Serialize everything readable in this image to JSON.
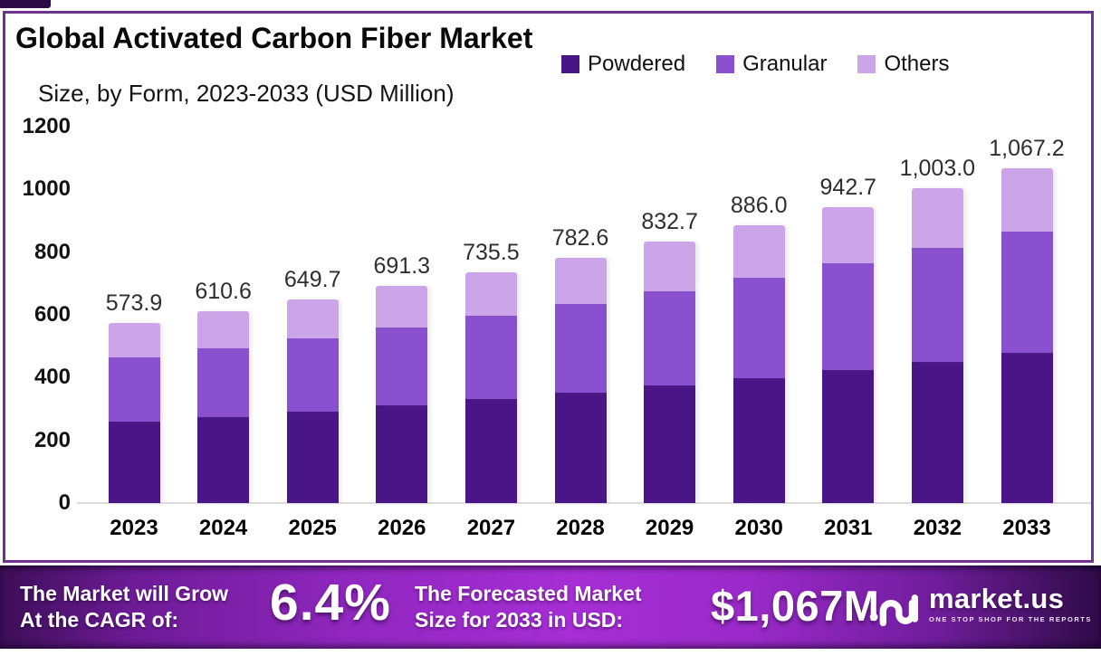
{
  "header": {
    "title": "Global Activated Carbon Fiber Market",
    "subtitle": "Size, by Form, 2023-2033 (USD Million)"
  },
  "chart_data": {
    "type": "bar",
    "stacked": true,
    "title": "Global Activated Carbon Fiber Market Size, by Form, 2023-2033 (USD Million)",
    "categories": [
      "2023",
      "2024",
      "2025",
      "2026",
      "2027",
      "2028",
      "2029",
      "2030",
      "2031",
      "2032",
      "2033"
    ],
    "series": [
      {
        "name": "Powdered",
        "color": "#4a1586",
        "values": [
          258.3,
          274.8,
          292.4,
          311.1,
          331.0,
          352.2,
          374.7,
          398.7,
          424.2,
          451.4,
          480.2
        ]
      },
      {
        "name": "Granular",
        "color": "#8950cf",
        "values": [
          206.6,
          219.8,
          233.9,
          248.9,
          264.8,
          281.7,
          299.8,
          319.0,
          339.4,
          361.1,
          384.2
        ]
      },
      {
        "name": "Others",
        "color": "#cca5e8",
        "values": [
          109.0,
          116.0,
          123.4,
          131.3,
          139.7,
          148.7,
          158.2,
          168.3,
          179.1,
          190.5,
          202.8
        ]
      }
    ],
    "totals": [
      573.9,
      610.6,
      649.7,
      691.3,
      735.5,
      782.6,
      832.7,
      886.0,
      942.7,
      1003.0,
      1067.2
    ],
    "total_labels": [
      "573.9",
      "610.6",
      "649.7",
      "691.3",
      "735.5",
      "782.6",
      "832.7",
      "886.0",
      "942.7",
      "1,003.0",
      "1,067.2"
    ],
    "ylim": [
      0,
      1200
    ],
    "yticks": [
      0,
      200,
      400,
      600,
      800,
      1000,
      1200
    ],
    "ytick_labels": [
      "0",
      "200",
      "400",
      "600",
      "800",
      "1000",
      "1200"
    ],
    "grid": false,
    "legend_position": "top-right"
  },
  "banner": {
    "cagr_label_line1": "The Market will Grow",
    "cagr_label_line2": "At the CAGR of:",
    "cagr_value": "6.4%",
    "forecast_label_line1": "The Forecasted Market",
    "forecast_label_line2": "Size for 2033 in USD:",
    "forecast_value": "$1,067M",
    "brand": "market.us",
    "brand_tagline": "ONE STOP SHOP FOR THE REPORTS"
  },
  "colors": {
    "powdered": "#4a1586",
    "granular": "#8950cf",
    "others": "#cca5e8",
    "card_border": "#70328f",
    "banner_center": "#a62ed4",
    "banner_edge": "#2e0b47",
    "axis_text": "#121212"
  }
}
